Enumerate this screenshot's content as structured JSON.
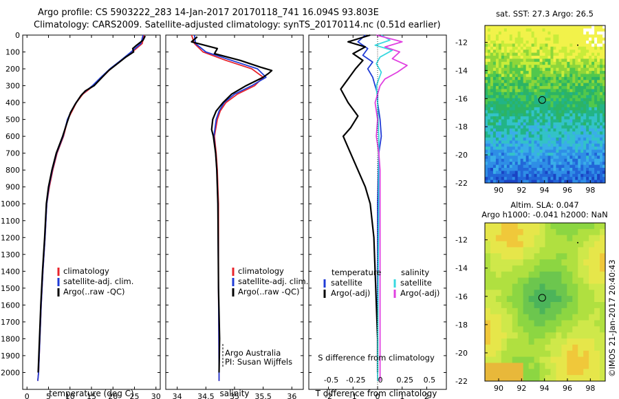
{
  "header": {
    "title_line1": "Argo profile: CS 5903222_283 14-Jan-2017 20170118_741 16.094S 93.803E",
    "title_line2": "Climatology: CARS2009. Satellite-adjusted climatology: synTS_20170114.nc (0.51d earlier)"
  },
  "footer": {
    "credit": "©IMOS 21-Jan-2017 20:40:43"
  },
  "colors": {
    "climatology": "#e8232b",
    "satellite": "#1f3bd6",
    "argo": "#000000",
    "satellite_salinity": "#38d8e0",
    "argo_salinity": "#e040e0"
  },
  "chart_data": [
    {
      "id": "temperature",
      "type": "line",
      "xlabel": "temperature (deg C)",
      "ylabel": "",
      "xlim": [
        -1,
        31
      ],
      "ylim": [
        2100,
        0
      ],
      "xticks": [
        0,
        5,
        10,
        15,
        20,
        25,
        30
      ],
      "yticks": [
        0,
        100,
        200,
        300,
        400,
        500,
        600,
        700,
        800,
        900,
        1000,
        1100,
        1200,
        1300,
        1400,
        1500,
        1600,
        1700,
        1800,
        1900,
        2000
      ],
      "legend": [
        "climatology",
        "satellite-adj. clim.",
        "Argo(..raw -QC)"
      ],
      "series": [
        {
          "name": "climatology",
          "color": "#e8232b",
          "points": [
            [
              27.2,
              0
            ],
            [
              26.8,
              50
            ],
            [
              24.5,
              100
            ],
            [
              22,
              150
            ],
            [
              19.5,
              200
            ],
            [
              17.5,
              250
            ],
            [
              15.5,
              300
            ],
            [
              13,
              350
            ],
            [
              11.5,
              400
            ],
            [
              10.5,
              450
            ],
            [
              9.5,
              500
            ],
            [
              8.5,
              600
            ],
            [
              7,
              700
            ],
            [
              6,
              800
            ],
            [
              5.2,
              900
            ],
            [
              4.6,
              1000
            ],
            [
              4.2,
              1200
            ],
            [
              3.7,
              1400
            ],
            [
              3.3,
              1600
            ],
            [
              3,
              1800
            ],
            [
              2.7,
              2000
            ],
            [
              2.5,
              2050
            ]
          ]
        },
        {
          "name": "satellite-adj. clim.",
          "color": "#1f3bd6",
          "points": [
            [
              27,
              0
            ],
            [
              26.5,
              50
            ],
            [
              24.2,
              100
            ],
            [
              21.8,
              150
            ],
            [
              19.3,
              200
            ],
            [
              17.2,
              250
            ],
            [
              15.2,
              300
            ],
            [
              12.8,
              350
            ],
            [
              11.4,
              400
            ],
            [
              10.3,
              450
            ],
            [
              9.4,
              500
            ],
            [
              8.4,
              600
            ],
            [
              6.9,
              700
            ],
            [
              5.9,
              800
            ],
            [
              5.1,
              900
            ],
            [
              4.6,
              1000
            ],
            [
              4.2,
              1200
            ],
            [
              3.7,
              1400
            ],
            [
              3.3,
              1600
            ],
            [
              3,
              1800
            ],
            [
              2.7,
              2000
            ],
            [
              2.5,
              2050
            ]
          ]
        },
        {
          "name": "Argo(..raw -QC)",
          "color": "#000000",
          "points": [
            [
              27.5,
              5
            ],
            [
              27,
              30
            ],
            [
              25.5,
              60
            ],
            [
              24.6,
              80
            ],
            [
              24.8,
              100
            ],
            [
              23,
              130
            ],
            [
              21,
              170
            ],
            [
              19,
              210
            ],
            [
              17.5,
              250
            ],
            [
              15.6,
              300
            ],
            [
              13.6,
              330
            ],
            [
              12.5,
              360
            ],
            [
              11.2,
              410
            ],
            [
              10.1,
              460
            ],
            [
              9.3,
              520
            ],
            [
              8.3,
              600
            ],
            [
              6.8,
              700
            ],
            [
              5.8,
              800
            ],
            [
              5,
              900
            ],
            [
              4.5,
              1000
            ],
            [
              4.1,
              1200
            ],
            [
              3.6,
              1400
            ],
            [
              3.2,
              1600
            ],
            [
              2.9,
              1800
            ],
            [
              2.6,
              2000
            ]
          ]
        }
      ]
    },
    {
      "id": "salinity",
      "type": "line",
      "xlabel": "salinity",
      "xlim": [
        33.8,
        36.2
      ],
      "ylim": [
        2100,
        0
      ],
      "xticks": [
        34,
        34.5,
        35,
        35.5,
        36
      ],
      "legend": [
        "climatology",
        "satellite-adj. clim.",
        "Argo(..raw -QC)"
      ],
      "annotations": [
        "Argo Australia",
        "PI: Susan Wijffels"
      ],
      "series": [
        {
          "name": "climatology",
          "color": "#e8232b",
          "points": [
            [
              34.25,
              0
            ],
            [
              34.3,
              50
            ],
            [
              34.45,
              100
            ],
            [
              34.85,
              150
            ],
            [
              35.3,
              200
            ],
            [
              35.5,
              250
            ],
            [
              35.35,
              300
            ],
            [
              35.05,
              350
            ],
            [
              34.85,
              400
            ],
            [
              34.75,
              450
            ],
            [
              34.7,
              500
            ],
            [
              34.65,
              600
            ],
            [
              34.68,
              700
            ],
            [
              34.7,
              800
            ],
            [
              34.71,
              900
            ],
            [
              34.72,
              1000
            ],
            [
              34.72,
              1500
            ],
            [
              34.73,
              2000
            ],
            [
              34.73,
              2050
            ]
          ]
        },
        {
          "name": "satellite-adj. clim.",
          "color": "#1f3bd6",
          "points": [
            [
              34.3,
              0
            ],
            [
              34.32,
              50
            ],
            [
              34.5,
              100
            ],
            [
              34.95,
              150
            ],
            [
              35.4,
              200
            ],
            [
              35.55,
              250
            ],
            [
              35.3,
              300
            ],
            [
              35.0,
              350
            ],
            [
              34.82,
              400
            ],
            [
              34.73,
              450
            ],
            [
              34.68,
              500
            ],
            [
              34.64,
              600
            ],
            [
              34.67,
              700
            ],
            [
              34.69,
              800
            ],
            [
              34.7,
              900
            ],
            [
              34.71,
              1000
            ],
            [
              34.72,
              1500
            ],
            [
              34.73,
              2000
            ],
            [
              34.73,
              2050
            ]
          ]
        },
        {
          "name": "Argo(..raw -QC)",
          "color": "#000000",
          "points": [
            [
              34.35,
              10
            ],
            [
              34.25,
              40
            ],
            [
              34.7,
              80
            ],
            [
              34.65,
              110
            ],
            [
              35.1,
              150
            ],
            [
              35.45,
              190
            ],
            [
              35.65,
              210
            ],
            [
              35.6,
              225
            ],
            [
              35.5,
              250
            ],
            [
              35.2,
              300
            ],
            [
              34.95,
              350
            ],
            [
              34.8,
              400
            ],
            [
              34.68,
              450
            ],
            [
              34.62,
              500
            ],
            [
              34.6,
              560
            ],
            [
              34.63,
              600
            ],
            [
              34.67,
              700
            ],
            [
              34.69,
              800
            ],
            [
              34.7,
              900
            ],
            [
              34.71,
              1000
            ],
            [
              34.72,
              1500
            ],
            [
              34.74,
              1800
            ],
            [
              34.73,
              2000
            ]
          ]
        }
      ]
    },
    {
      "id": "difference",
      "type": "line",
      "xlabel": "T difference from climatology",
      "x2label": "S difference from climatology",
      "xlim": [
        -2.8,
        2.8
      ],
      "ylim": [
        2100,
        0
      ],
      "xticks": [
        -2,
        -1,
        0,
        1,
        2
      ],
      "x2ticks": [
        "-0.5",
        "-0.25",
        "0",
        "0.25",
        "0.5"
      ],
      "legend_temperature": {
        "title": "temperature",
        "items": [
          "satellite",
          "Argo(-adj)"
        ]
      },
      "legend_salinity": {
        "title": "salinity",
        "items": [
          "satellite",
          "Argo(-adj)"
        ]
      },
      "series": [
        {
          "name": "T satellite",
          "color": "#1f3bd6",
          "points": [
            [
              -0.5,
              0
            ],
            [
              -0.8,
              40
            ],
            [
              -0.4,
              80
            ],
            [
              -0.6,
              120
            ],
            [
              -0.2,
              160
            ],
            [
              -0.4,
              200
            ],
            [
              -0.2,
              250
            ],
            [
              -0.1,
              300
            ],
            [
              0,
              350
            ],
            [
              0,
              400
            ],
            [
              0.1,
              500
            ],
            [
              0.15,
              600
            ],
            [
              0.05,
              700
            ],
            [
              0.03,
              800
            ],
            [
              0,
              1000
            ],
            [
              0,
              1500
            ],
            [
              0,
              2000
            ]
          ]
        },
        {
          "name": "T Argo(-adj)",
          "color": "#000000",
          "points": [
            [
              -0.3,
              0
            ],
            [
              -1.2,
              40
            ],
            [
              -0.5,
              70
            ],
            [
              -1.0,
              110
            ],
            [
              -0.6,
              150
            ],
            [
              -0.9,
              200
            ],
            [
              -1.2,
              260
            ],
            [
              -1.5,
              320
            ],
            [
              -1.2,
              400
            ],
            [
              -0.8,
              480
            ],
            [
              -1.1,
              550
            ],
            [
              -1.4,
              600
            ],
            [
              -1.1,
              700
            ],
            [
              -0.8,
              800
            ],
            [
              -0.5,
              900
            ],
            [
              -0.3,
              1000
            ],
            [
              -0.15,
              1200
            ],
            [
              -0.1,
              1400
            ],
            [
              -0.05,
              1600
            ],
            [
              0,
              1800
            ],
            [
              0,
              2000
            ]
          ]
        },
        {
          "name": "S satellite",
          "color": "#38d8e0",
          "points": [
            [
              0.15,
              0
            ],
            [
              0.5,
              30
            ],
            [
              -0.1,
              60
            ],
            [
              0.6,
              90
            ],
            [
              0.1,
              130
            ],
            [
              -0.05,
              170
            ],
            [
              0.15,
              220
            ],
            [
              -0.05,
              300
            ],
            [
              0.0,
              400
            ],
            [
              0.02,
              500
            ],
            [
              0.05,
              600
            ],
            [
              0.05,
              800
            ],
            [
              0.05,
              1000
            ],
            [
              0.02,
              1500
            ],
            [
              0,
              2000
            ],
            [
              0,
              2050
            ]
          ]
        },
        {
          "name": "S Argo(-adj)",
          "color": "#e040e0",
          "points": [
            [
              -0.05,
              0
            ],
            [
              1.0,
              40
            ],
            [
              0.3,
              70
            ],
            [
              0.9,
              100
            ],
            [
              0.6,
              140
            ],
            [
              1.2,
              180
            ],
            [
              0.8,
              220
            ],
            [
              0.3,
              260
            ],
            [
              0.1,
              300
            ],
            [
              -0.1,
              400
            ],
            [
              0.0,
              500
            ],
            [
              -0.05,
              600
            ],
            [
              0.05,
              700
            ],
            [
              0.1,
              800
            ],
            [
              0.1,
              1000
            ],
            [
              0.1,
              1500
            ],
            [
              0.1,
              2000
            ],
            [
              0.1,
              2050
            ]
          ]
        }
      ]
    },
    {
      "id": "sst-map",
      "type": "heatmap",
      "title": "sat. SST: 27.3 Argo: 26.5",
      "xlim": [
        88.8,
        99.3
      ],
      "ylim": [
        -22,
        -10.8
      ],
      "xticks": [
        90,
        92,
        94,
        96,
        98
      ],
      "yticks": [
        -12,
        -14,
        -16,
        -18,
        -20,
        -22
      ],
      "argo_location": [
        93.8,
        -16.1
      ]
    },
    {
      "id": "sla-map",
      "type": "heatmap",
      "title_line1": "Altim. SLA: 0.047",
      "title_line2": "Argo h1000: -0.041 h2000: NaN",
      "xlim": [
        88.8,
        99.3
      ],
      "ylim": [
        -22,
        -10.8
      ],
      "xticks": [
        90,
        92,
        94,
        96,
        98
      ],
      "yticks": [
        -12,
        -14,
        -16,
        -18,
        -20,
        -22
      ],
      "argo_location": [
        93.8,
        -16.1
      ]
    }
  ]
}
